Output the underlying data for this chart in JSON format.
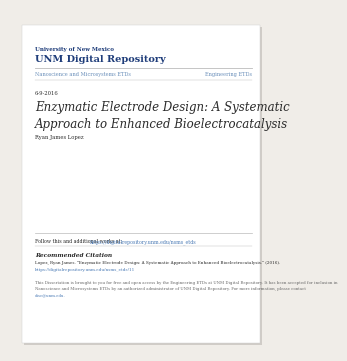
{
  "bg_color": "#f0ede8",
  "page_bg": "#ffffff",
  "header_unm_small": "University of New Mexico",
  "header_unm_large": "UNM Digital Repository",
  "nav_left": "Nanoscience and Microsystems ETDs",
  "nav_right": "Engineering ETDs",
  "date": "6-9-2016",
  "title_line1": "Enzymatic Electrode Design: A Systematic",
  "title_line2": "Approach to Enhanced Bioelectrocatalysis",
  "author": "Ryan James Lopez",
  "follow_text": "Follow this and additional works at: ",
  "follow_link": "https://digitalrepository.unm.edu/nsms_etds",
  "rec_citation_header": "Recommended Citation",
  "citation_line1": "Lopez, Ryan James. \"Enzymatic Electrode Design: A Systematic Approach to Enhanced Bioelectrocatalysis.\" (2016).",
  "citation_link": "https://digitalrepository.unm.edu/nsms_etds/11",
  "disclaimer_line1": "This Dissertation is brought to you for free and open access by the Engineering ETDs at UNM Digital Repository. It has been accepted for inclusion in",
  "disclaimer_line2": "Nanoscience and Microsystems ETDs by an authorized administrator of UNM Digital Repository. For more information, please contact",
  "disclaimer_line3": "disc@unm.edu.",
  "blue_dark": "#1f3d7a",
  "blue_link": "#4a7ab5",
  "blue_nav": "#6a8fba",
  "gray_line": "#bbbbbb",
  "text_dark": "#2a2a2a",
  "text_small": "#666666",
  "shadow_color": "#d0ccc7"
}
